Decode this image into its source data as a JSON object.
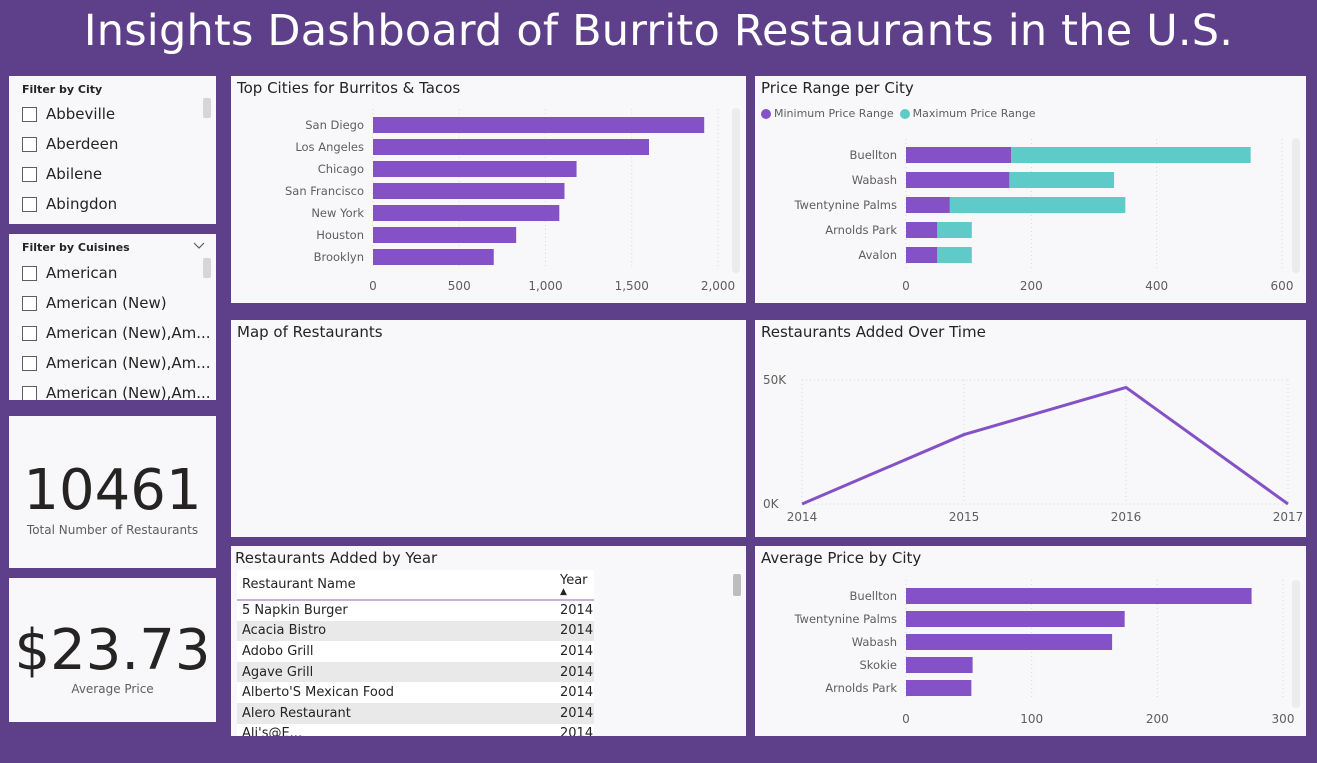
{
  "dashboard": {
    "title": "Insights Dashboard of Burrito Restaurants in the U.S."
  },
  "colors": {
    "background": "#5e3f8a",
    "purple": "#8451c6",
    "teal": "#5ecbc8",
    "tile": "#f8f7fa"
  },
  "city_filter": {
    "title": "Filter by City",
    "items": [
      "Abbeville",
      "Aberdeen",
      "Abilene",
      "Abingdon"
    ]
  },
  "cuisine_filter": {
    "title": "Filter by Cuisines",
    "items": [
      "American",
      "American (New)",
      "American (New),Am...",
      "American (New),Am...",
      "American (New),Am..."
    ]
  },
  "kpi_total": {
    "value": "10461",
    "label": "Total Number of Restaurants"
  },
  "kpi_price": {
    "value": "$23.73",
    "label": "Average Price"
  },
  "top_cities": {
    "title": "Top Cities for Burritos & Tacos"
  },
  "price_range": {
    "title": "Price Range per City"
  },
  "map": {
    "title": "Map of Restaurants"
  },
  "added_time": {
    "title": "Restaurants Added Over Time"
  },
  "added_year": {
    "title": "Restaurants Added by Year",
    "col_name": "Restaurant Name",
    "col_year": "Year",
    "rows": [
      {
        "name": "5 Napkin Burger",
        "year": "2014"
      },
      {
        "name": "Acacia Bistro",
        "year": "2014"
      },
      {
        "name": "Adobo Grill",
        "year": "2014"
      },
      {
        "name": "Agave Grill",
        "year": "2014"
      },
      {
        "name": "Alberto'S Mexican Food",
        "year": "2014"
      },
      {
        "name": "Alero Restaurant",
        "year": "2014"
      },
      {
        "name": "Ali's@E...",
        "year": "2014"
      }
    ]
  },
  "avg_price": {
    "title": "Average Price by City"
  },
  "chart_data": [
    {
      "id": "top_cities",
      "type": "bar",
      "orientation": "horizontal",
      "title": "Top Cities for Burritos & Tacos",
      "categories": [
        "San Diego",
        "Los Angeles",
        "Chicago",
        "San Francisco",
        "New York",
        "Houston",
        "Brooklyn"
      ],
      "values": [
        1920,
        1600,
        1180,
        1110,
        1080,
        830,
        700
      ],
      "xlim": [
        0,
        2000
      ],
      "ticks": [
        0,
        500,
        1000,
        1500,
        2000
      ],
      "tick_labels": [
        "0",
        "500",
        "1,000",
        "1,500",
        "2,000"
      ],
      "color": "#8451c6"
    },
    {
      "id": "price_range",
      "type": "bar",
      "orientation": "horizontal",
      "stacked": true,
      "title": "Price Range per City",
      "categories": [
        "Buellton",
        "Wabash",
        "Twentynine Palms",
        "Arnolds Park",
        "Avalon"
      ],
      "series": [
        {
          "name": "Minimum Price Range",
          "values": [
            168,
            165,
            70,
            50,
            50
          ],
          "color": "#8451c6"
        },
        {
          "name": "Maximum Price Range",
          "values": [
            382,
            167,
            280,
            55,
            55
          ],
          "color": "#5ecbc8"
        }
      ],
      "xlim": [
        0,
        600
      ],
      "ticks": [
        0,
        200,
        400,
        600
      ],
      "legend": "top-left"
    },
    {
      "id": "added_time",
      "type": "line",
      "title": "Restaurants Added Over Time",
      "x": [
        "2014",
        "2015",
        "2016",
        "2017"
      ],
      "values": [
        0,
        28000,
        47000,
        0
      ],
      "ylim": [
        0,
        50000
      ],
      "yticks": [
        0,
        50000
      ],
      "ytick_labels": [
        "0K",
        "50K"
      ],
      "grid": true,
      "color": "#8451c6"
    },
    {
      "id": "avg_price",
      "type": "bar",
      "orientation": "horizontal",
      "title": "Average Price by City",
      "categories": [
        "Buellton",
        "Twentynine Palms",
        "Wabash",
        "Skokie",
        "Arnolds Park"
      ],
      "values": [
        275,
        174,
        164,
        53,
        52
      ],
      "xlim": [
        0,
        300
      ],
      "ticks": [
        0,
        100,
        200,
        300
      ],
      "color": "#8451c6"
    }
  ]
}
